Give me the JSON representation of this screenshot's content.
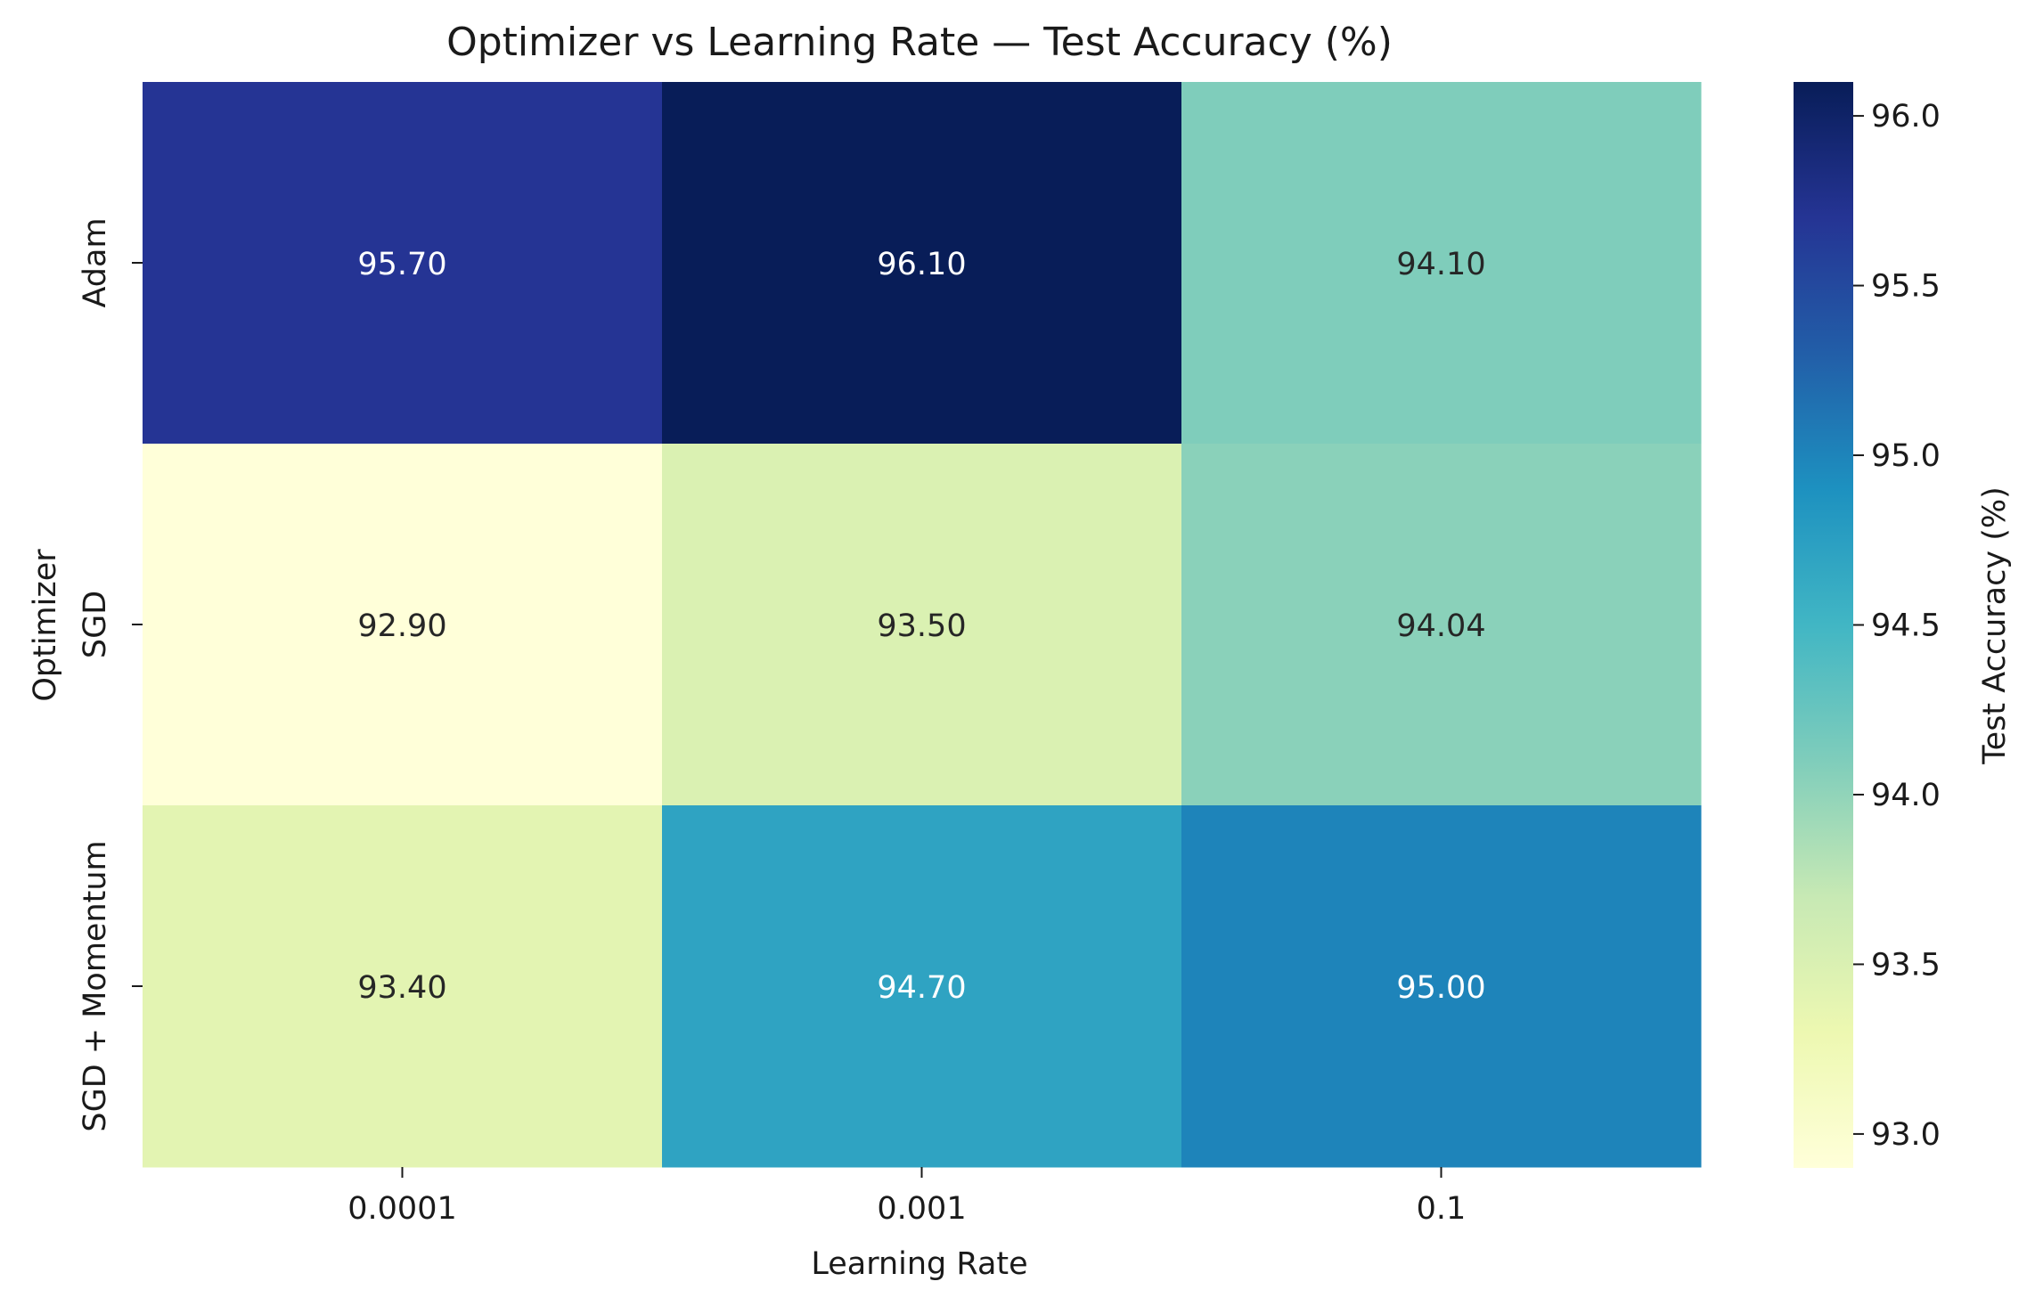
{
  "chart_data": {
    "type": "heatmap",
    "title": "Optimizer vs Learning Rate — Test Accuracy (%)",
    "xlabel": "Learning Rate",
    "ylabel": "Optimizer",
    "x_categories": [
      "0.0001",
      "0.001",
      "0.1"
    ],
    "y_categories": [
      "Adam",
      "SGD",
      "SGD + Momentum"
    ],
    "values": [
      [
        95.7,
        96.1,
        94.1
      ],
      [
        92.9,
        93.5,
        94.04
      ],
      [
        93.4,
        94.7,
        95.0
      ]
    ],
    "value_labels": [
      [
        "95.70",
        "96.10",
        "94.10"
      ],
      [
        "92.90",
        "93.50",
        "94.04"
      ],
      [
        "93.40",
        "94.70",
        "95.00"
      ]
    ],
    "colorbar": {
      "label": "Test Accuracy (%)",
      "range": [
        92.9,
        96.1
      ],
      "ticks": [
        93.0,
        93.5,
        94.0,
        94.5,
        95.0,
        95.5,
        96.0
      ],
      "tick_labels": [
        "93.0",
        "93.5",
        "94.0",
        "94.5",
        "95.0",
        "95.5",
        "96.0"
      ],
      "colormap": "YlGnBu",
      "colormap_stops": [
        "#ffffd9",
        "#edf8b1",
        "#c7e9b4",
        "#7fcdbb",
        "#41b6c4",
        "#1d91c0",
        "#225ea8",
        "#253494",
        "#081d58"
      ]
    },
    "grid": false
  }
}
